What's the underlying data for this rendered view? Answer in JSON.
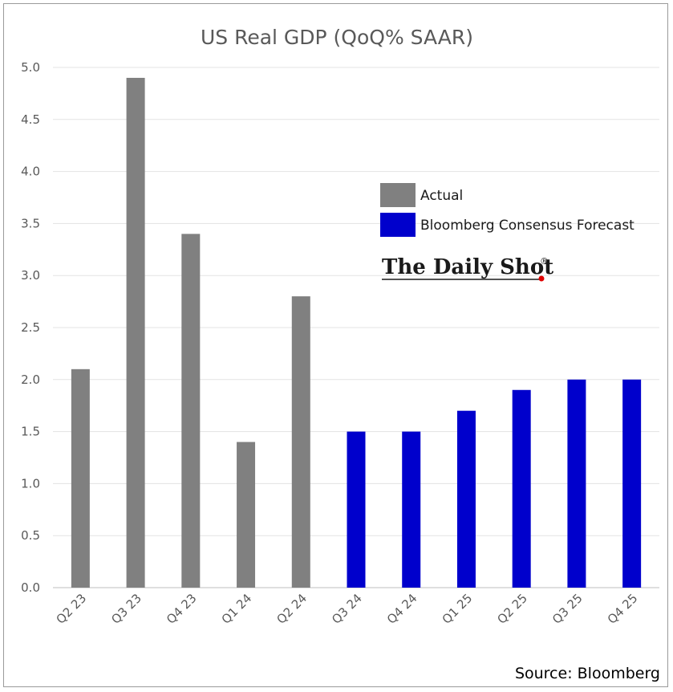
{
  "chart_data": {
    "type": "bar",
    "title": "US Real GDP (QoQ% SAAR)",
    "xlabel": "",
    "ylabel": "",
    "ylim": [
      0,
      5
    ],
    "yticks": [
      "0.0",
      "0.5",
      "1.0",
      "1.5",
      "2.0",
      "2.5",
      "3.0",
      "3.5",
      "4.0",
      "4.5",
      "5.0"
    ],
    "grid": true,
    "legend_position": "right",
    "categories": [
      "Q2 23",
      "Q3 23",
      "Q4 23",
      "Q1 24",
      "Q2 24",
      "Q3 24",
      "Q4 24",
      "Q1 25",
      "Q2 25",
      "Q3 25",
      "Q4 25"
    ],
    "series": [
      {
        "name": "Actual",
        "color": "#808080",
        "values": [
          2.1,
          4.9,
          3.4,
          1.4,
          2.8,
          null,
          null,
          null,
          null,
          null,
          null
        ]
      },
      {
        "name": "Bloomberg Consensus Forecast",
        "color": "#0000CC",
        "values": [
          null,
          null,
          null,
          null,
          null,
          1.5,
          1.5,
          1.7,
          1.9,
          2.0,
          2.0
        ]
      }
    ]
  },
  "branding": {
    "logo_text": "The Daily Shot",
    "logo_mark": "®"
  },
  "source": "Source: Bloomberg"
}
